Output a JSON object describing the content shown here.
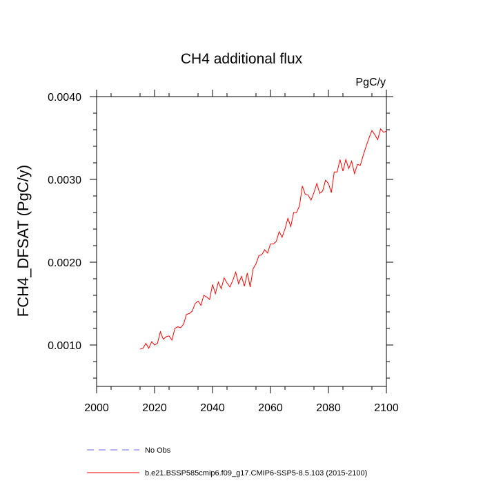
{
  "chart_data": {
    "type": "line",
    "title": "CH4 additional flux",
    "units": "PgC/y",
    "ylabel": "FCH4_DFSAT  (PgC/y)",
    "xlabel": "",
    "xlim": [
      2000,
      2100
    ],
    "ylim": [
      0.0005,
      0.004
    ],
    "x_ticks": [
      2000,
      2020,
      2040,
      2060,
      2080,
      2100
    ],
    "x_tick_labels": [
      "2000",
      "2020",
      "2040",
      "2060",
      "2080",
      "2100"
    ],
    "y_ticks": [
      0.001,
      0.002,
      0.003,
      0.004
    ],
    "y_tick_labels": [
      "0.0010",
      "0.0020",
      "0.0030",
      "0.0040"
    ],
    "grid": false,
    "legend_position": "bottom",
    "series": [
      {
        "name": "No Obs",
        "color": "#6b6bff",
        "dash": "dashed",
        "x": [],
        "y": []
      },
      {
        "name": "b.e21.BSSP585cmip6.f09_g17.CMIP6-SSP5-8.5.103 (2015-2100)",
        "color": "#ff0000",
        "dash": "solid",
        "x": [
          2015,
          2016,
          2017,
          2018,
          2019,
          2020,
          2021,
          2022,
          2023,
          2024,
          2025,
          2026,
          2027,
          2028,
          2029,
          2030,
          2031,
          2032,
          2033,
          2034,
          2035,
          2036,
          2037,
          2038,
          2039,
          2040,
          2041,
          2042,
          2043,
          2044,
          2045,
          2046,
          2047,
          2048,
          2049,
          2050,
          2051,
          2052,
          2053,
          2054,
          2055,
          2056,
          2057,
          2058,
          2059,
          2060,
          2061,
          2062,
          2063,
          2064,
          2065,
          2066,
          2067,
          2068,
          2069,
          2070,
          2071,
          2072,
          2073,
          2074,
          2075,
          2076,
          2077,
          2078,
          2079,
          2080,
          2081,
          2082,
          2083,
          2084,
          2085,
          2086,
          2087,
          2088,
          2089,
          2090,
          2091,
          2092,
          2093,
          2094,
          2095,
          2096,
          2097,
          2098,
          2099,
          2100
        ],
        "y": [
          0.00095,
          0.00096,
          0.00102,
          0.00096,
          0.00104,
          0.001,
          0.00102,
          0.00116,
          0.00107,
          0.0011,
          0.00111,
          0.00106,
          0.0012,
          0.00122,
          0.00121,
          0.00125,
          0.00137,
          0.00138,
          0.00141,
          0.0015,
          0.00153,
          0.00148,
          0.0016,
          0.00158,
          0.00155,
          0.00173,
          0.00162,
          0.00176,
          0.00168,
          0.00181,
          0.00175,
          0.0017,
          0.00178,
          0.00188,
          0.00174,
          0.00183,
          0.00171,
          0.00187,
          0.0017,
          0.00192,
          0.00198,
          0.00208,
          0.00209,
          0.00215,
          0.00211,
          0.00222,
          0.00222,
          0.00225,
          0.00237,
          0.0023,
          0.0024,
          0.00253,
          0.00243,
          0.0026,
          0.0026,
          0.00268,
          0.00292,
          0.00282,
          0.00281,
          0.00275,
          0.00284,
          0.00295,
          0.00283,
          0.00286,
          0.00299,
          0.00295,
          0.00284,
          0.00309,
          0.00309,
          0.00324,
          0.0031,
          0.00324,
          0.00313,
          0.00322,
          0.00307,
          0.00318,
          0.00317,
          0.00329,
          0.0034,
          0.0035,
          0.00359,
          0.00354,
          0.00348,
          0.00361,
          0.00357,
          0.00358
        ]
      }
    ]
  }
}
